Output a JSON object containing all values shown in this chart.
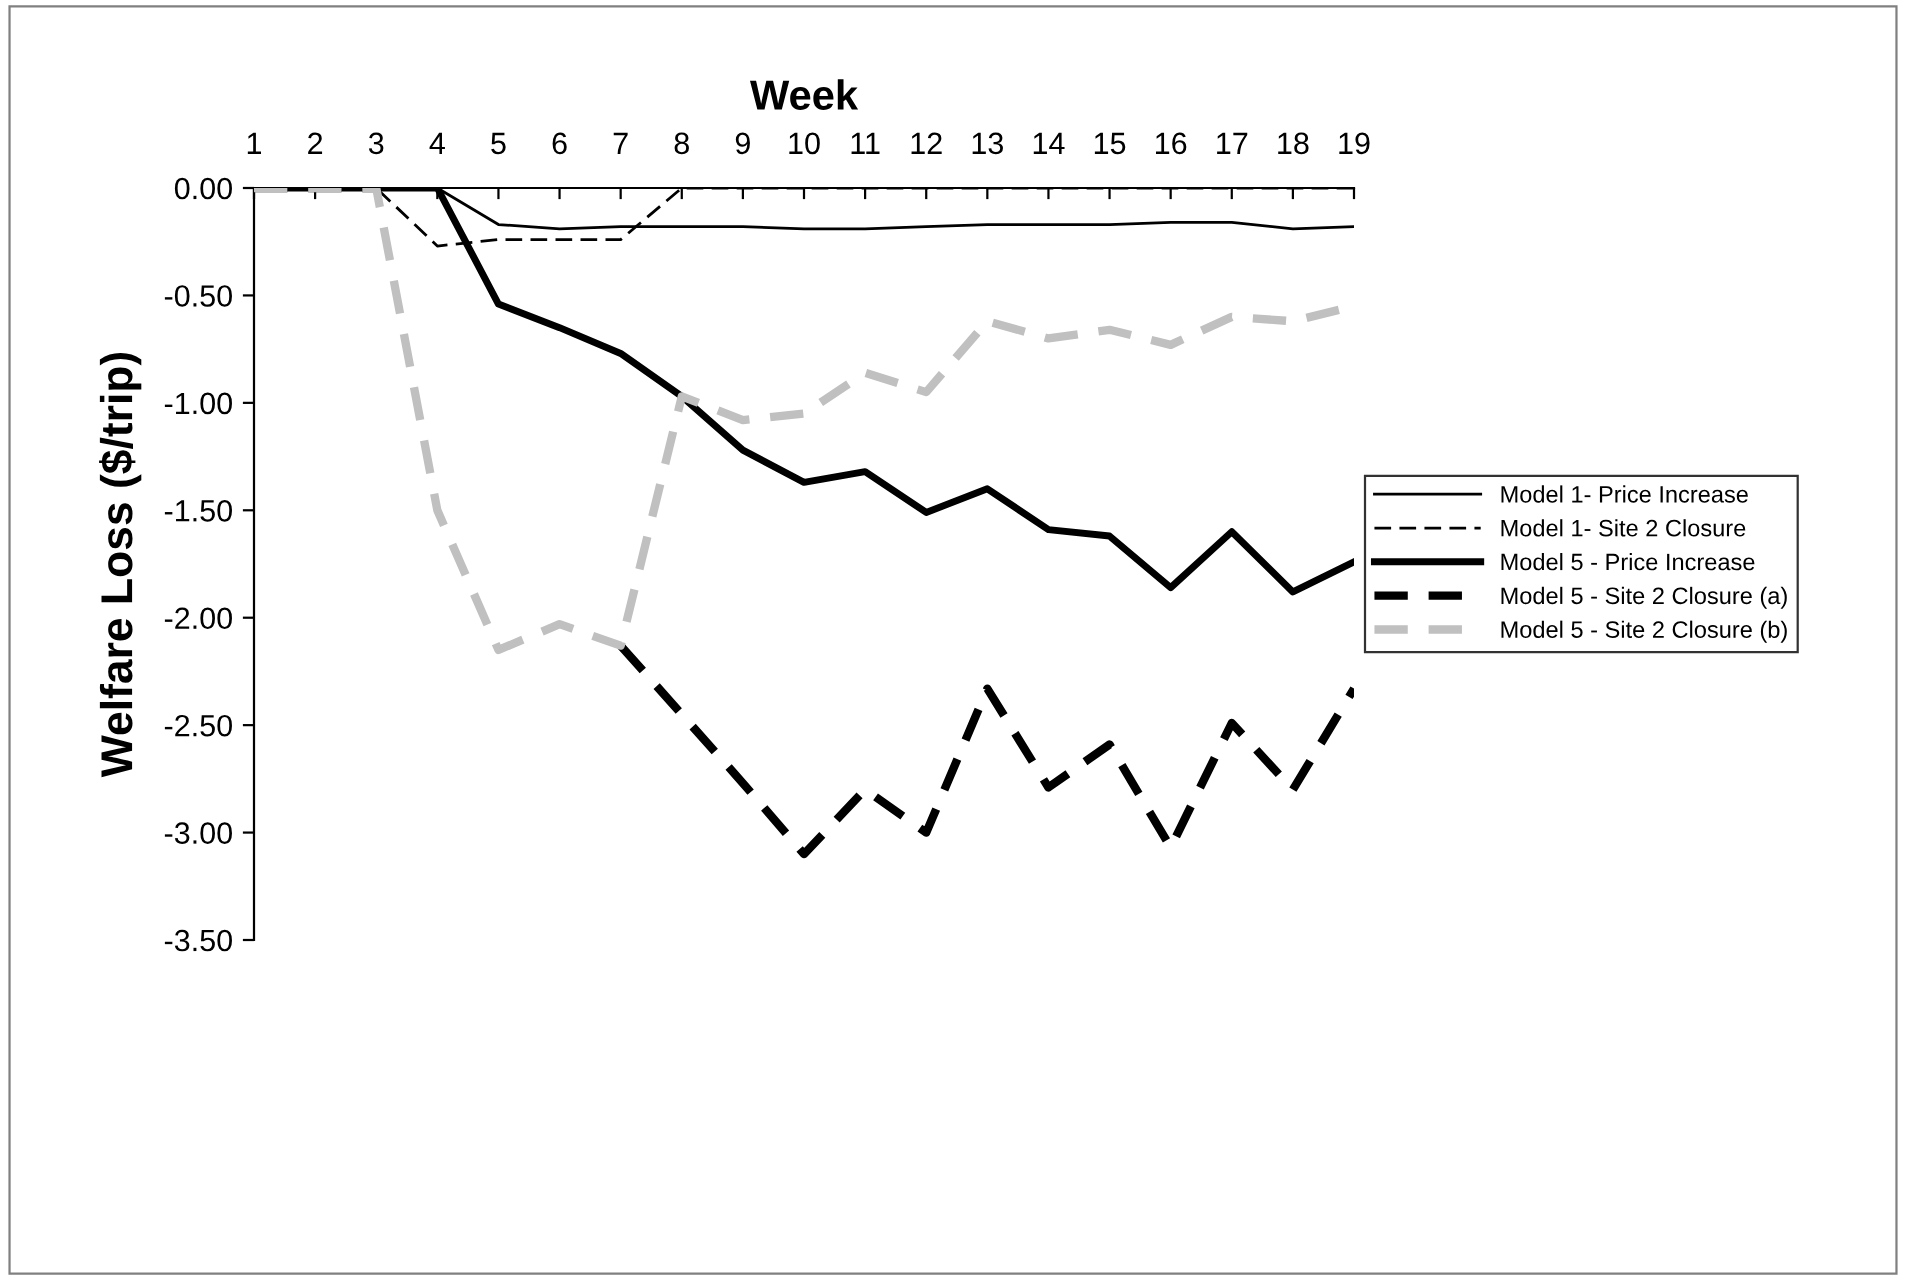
{
  "chart_data": {
    "type": "line",
    "xlabel": "Week",
    "ylabel": "Welfare Loss ($/trip)",
    "x": [
      1,
      2,
      3,
      4,
      5,
      6,
      7,
      8,
      9,
      10,
      11,
      12,
      13,
      14,
      15,
      16,
      17,
      18,
      19
    ],
    "xlim": [
      1,
      19
    ],
    "xticks": [
      1,
      2,
      3,
      4,
      5,
      6,
      7,
      8,
      9,
      10,
      11,
      12,
      13,
      14,
      15,
      16,
      17,
      18,
      19
    ],
    "ylim": [
      -3.5,
      0
    ],
    "yticks": [
      {
        "value": 0,
        "label": "0.00"
      },
      {
        "value": -0.5,
        "label": "-0.50"
      },
      {
        "value": -1,
        "label": "-1.00"
      },
      {
        "value": -1.5,
        "label": "-1.50"
      },
      {
        "value": -2,
        "label": "-2.00"
      },
      {
        "value": -2.5,
        "label": "-2.50"
      },
      {
        "value": -3,
        "label": "-3.00"
      },
      {
        "value": -3.5,
        "label": "-3.50"
      }
    ],
    "grid": false,
    "legend": "right",
    "marker": "none",
    "series": [
      {
        "name": "Model 1- Price Increase",
        "color": "#000000",
        "line_style": "solid",
        "values": [
          0,
          0,
          0,
          0,
          -0.17,
          -0.19,
          -0.18,
          -0.18,
          -0.18,
          -0.19,
          -0.19,
          -0.18,
          -0.17,
          -0.17,
          -0.17,
          -0.16,
          -0.16,
          -0.19,
          -0.18
        ]
      },
      {
        "name": "Model 1- Site 2 Closure",
        "color": "#000000",
        "line_style": "dashed",
        "values": [
          0,
          0,
          0,
          -0.27,
          -0.24,
          -0.24,
          -0.24,
          0,
          0,
          0,
          0,
          0,
          0,
          0,
          0,
          0,
          0,
          0,
          0
        ]
      },
      {
        "name": "Model 5 - Price Increase",
        "color": "#000000",
        "line_style": "solid",
        "values": [
          0,
          0,
          0,
          0,
          -0.54,
          -0.65,
          -0.77,
          -0.97,
          -1.22,
          -1.37,
          -1.32,
          -1.51,
          -1.4,
          -1.59,
          -1.62,
          -1.86,
          -1.6,
          -1.88,
          -1.74
        ]
      },
      {
        "name": "Model 5 - Site 2 Closure (a)",
        "color": "#000000",
        "line_style": "dashed",
        "values": [
          0,
          0,
          0,
          null,
          null,
          null,
          -2.13,
          -2.45,
          -2.77,
          -3.1,
          -2.8,
          -3.0,
          -2.33,
          -2.79,
          -2.59,
          -3.07,
          -2.49,
          -2.8,
          -2.33
        ]
      },
      {
        "name": "Model 5 - Site 2 Closure (b)",
        "color": "#c0c0c0",
        "line_style": "dashed",
        "values": [
          0,
          0,
          0,
          -1.5,
          -2.15,
          -2.03,
          -2.13,
          -0.97,
          -1.08,
          -1.05,
          -0.86,
          -0.95,
          -0.62,
          -0.7,
          -0.66,
          -0.73,
          -0.6,
          -0.62,
          -0.55
        ]
      }
    ]
  }
}
